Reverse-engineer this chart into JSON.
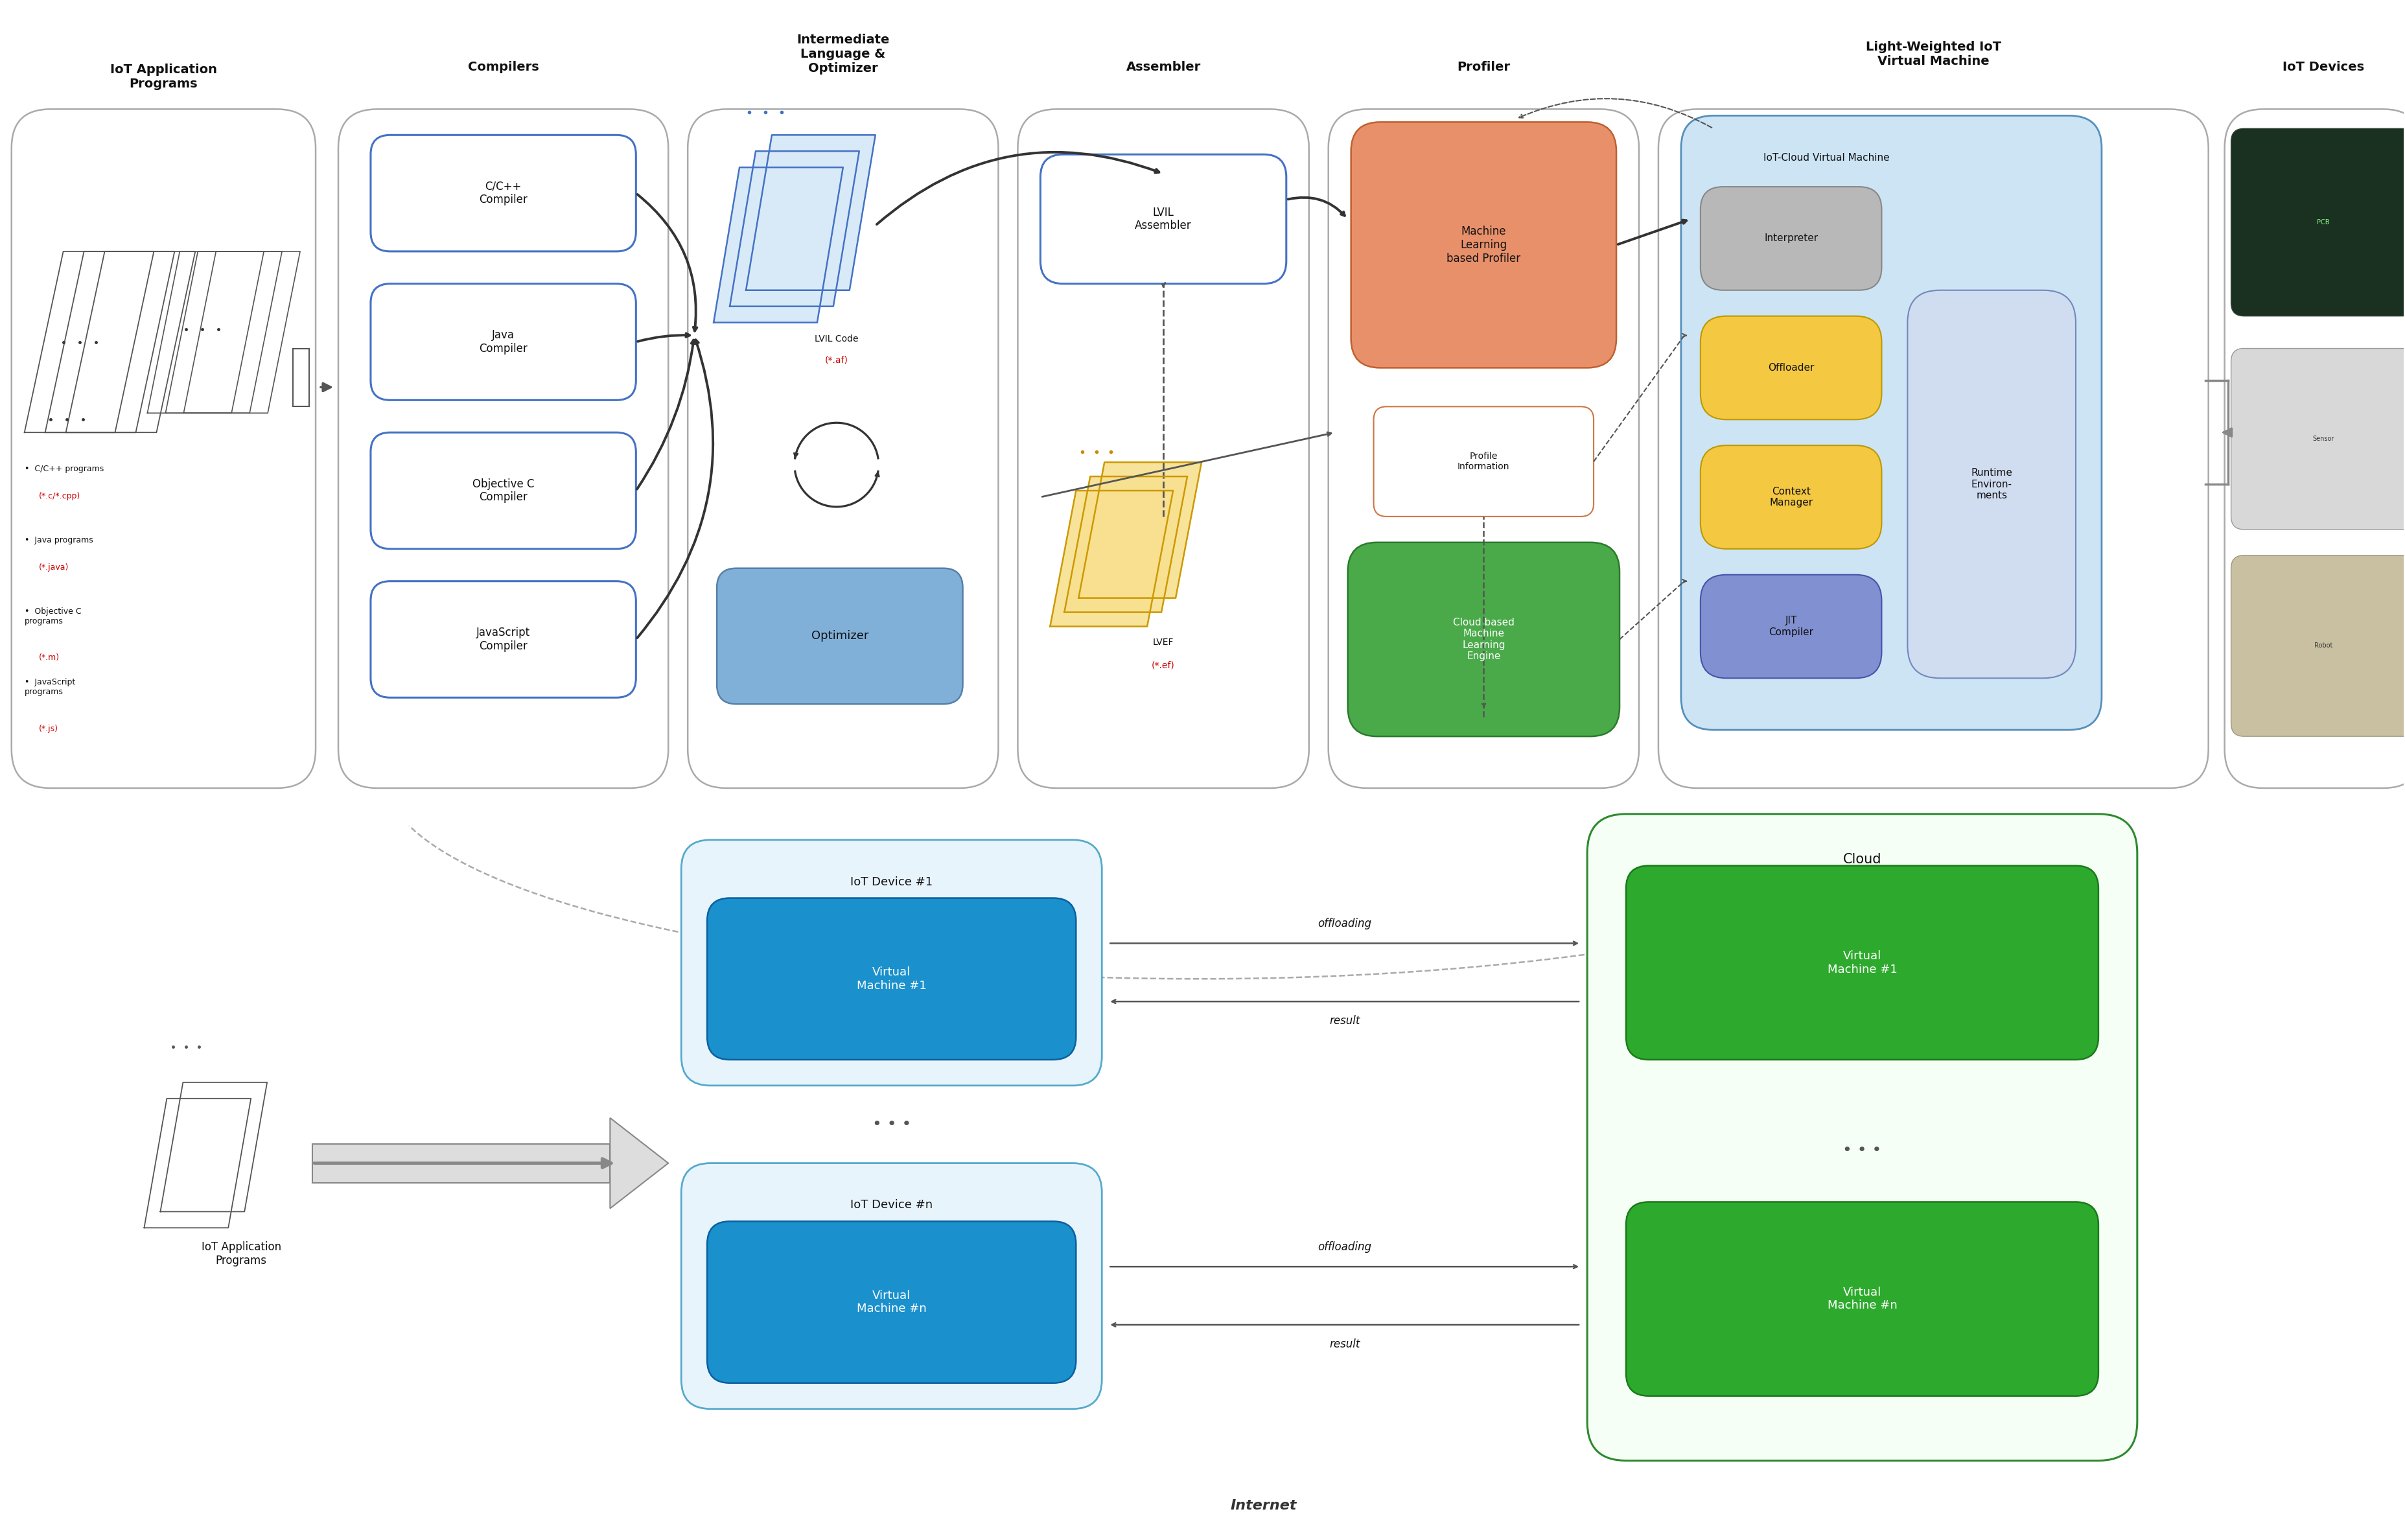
{
  "bg_color": "#ffffff",
  "blue_border": "#4472c4",
  "light_blue_fill": "#cce4f4",
  "blue_box_fill": "#9ab8d8",
  "orange_fill": "#e8906a",
  "green_fill": "#4aaa4a",
  "gray_fill": "#b8b8b8",
  "yellow_fill": "#f5c842",
  "optimizer_fill": "#80b0d8",
  "white_fill": "#ffffff",
  "red_text": "#cc0000",
  "dark_text": "#111111",
  "col1_title": "IoT Application\nPrograms",
  "col2_title": "Compilers",
  "col3_title": "Intermediate\nLanguage &\nOptimizer",
  "col4_title": "Assembler",
  "col5_title": "Profiler",
  "col6_title": "Light-Weighted IoT\nVirtual Machine",
  "col7_title": "IoT Devices",
  "compilers": [
    "C/C++\nCompiler",
    "Java\nCompiler",
    "Objective C\nCompiler",
    "JavaScript\nCompiler"
  ],
  "lvil_code_label": "LVIL Code",
  "lvil_af_label": "(*.af)",
  "lvef_label": "LVEF",
  "lvef_ef_label": "(*.ef)",
  "optimizer_label": "Optimizer",
  "lvil_assembler_label": "LVIL\nAssembler",
  "ml_profiler_label": "Machine\nLearning\nbased Profiler",
  "profile_info_label": "Profile\nInformation",
  "cloud_ml_label": "Cloud based\nMachine\nLearning\nEngine",
  "iot_cloud_vm_label": "IoT-Cloud Virtual Machine",
  "interpreter_label": "Interpreter",
  "offloader_label": "Offloader",
  "context_mgr_label": "Context\nManager",
  "jit_label": "JIT\nCompiler",
  "runtime_label": "Runtime\nEnviron-\nments",
  "iot_programs_bottom": "IoT Application\nPrograms",
  "iot_dev1": "IoT Device #1",
  "iot_devn": "IoT Device #n",
  "vm1": "Virtual\nMachine #1",
  "vmn": "Virtual\nMachine #n",
  "cloud_label": "Cloud",
  "cloud_vm1": "Virtual\nMachine #1",
  "cloud_vmn": "Virtual\nMachine #n",
  "offloading_label": "offloading",
  "result_label": "result",
  "internet_label": "Internet"
}
